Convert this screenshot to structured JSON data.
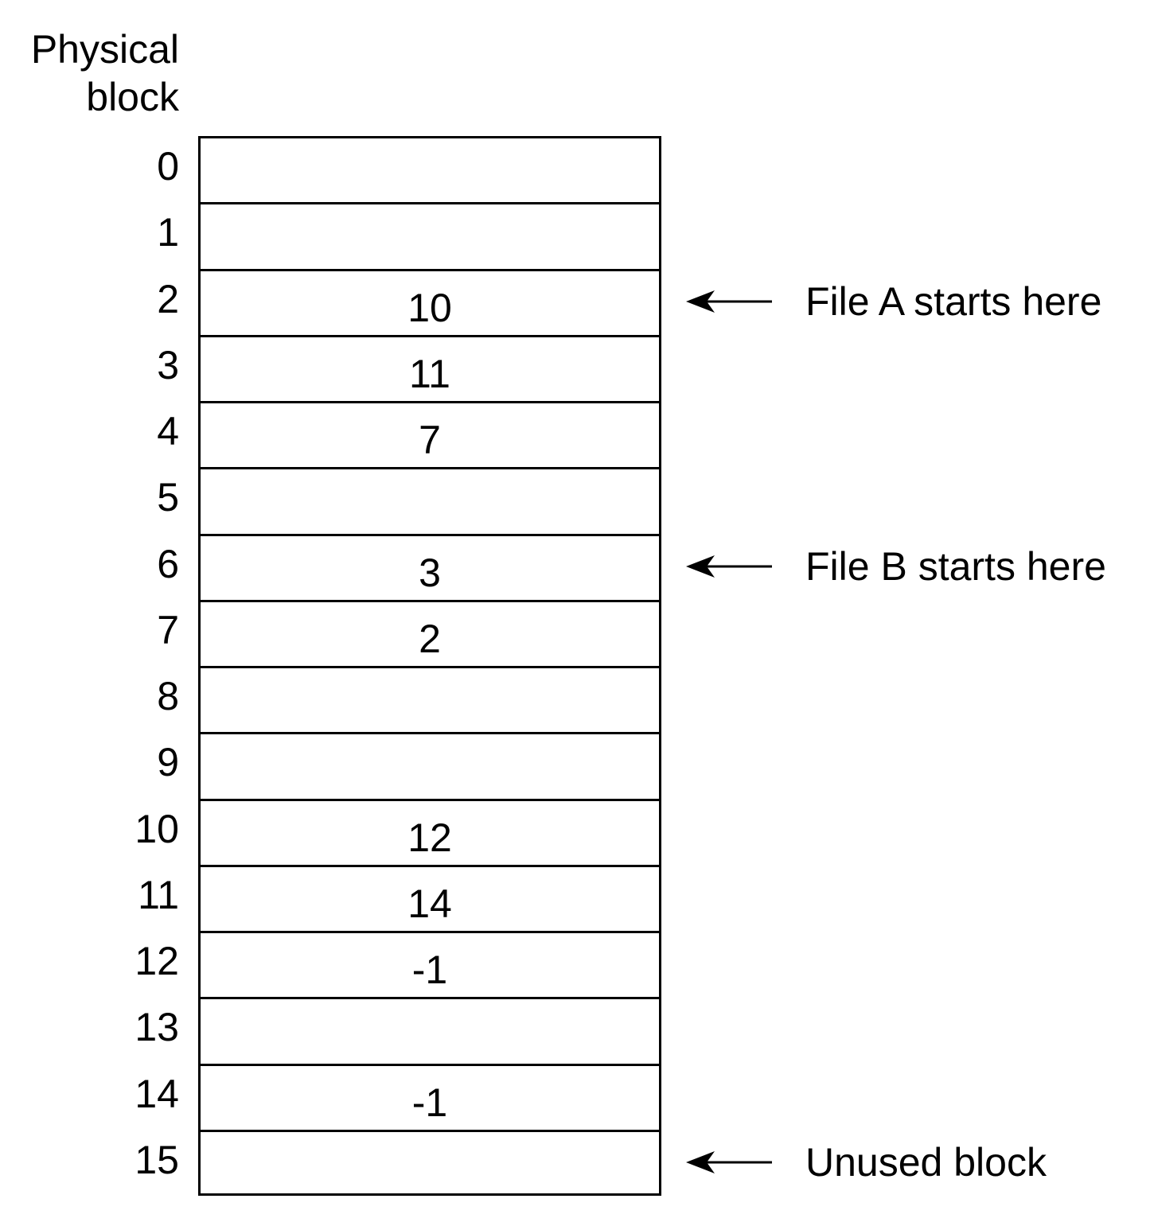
{
  "header": {
    "line1": "Physical",
    "line2": "block"
  },
  "blocks": [
    {
      "label": "0",
      "value": ""
    },
    {
      "label": "1",
      "value": ""
    },
    {
      "label": "2",
      "value": "10"
    },
    {
      "label": "3",
      "value": "11"
    },
    {
      "label": "4",
      "value": "7"
    },
    {
      "label": "5",
      "value": ""
    },
    {
      "label": "6",
      "value": "3"
    },
    {
      "label": "7",
      "value": "2"
    },
    {
      "label": "8",
      "value": ""
    },
    {
      "label": "9",
      "value": ""
    },
    {
      "label": "10",
      "value": "12"
    },
    {
      "label": "11",
      "value": "14"
    },
    {
      "label": "12",
      "value": "-1"
    },
    {
      "label": "13",
      "value": ""
    },
    {
      "label": "14",
      "value": "-1"
    },
    {
      "label": "15",
      "value": ""
    }
  ],
  "annotations": [
    {
      "block": 2,
      "text": "File A starts here"
    },
    {
      "block": 6,
      "text": "File B starts here"
    },
    {
      "block": 15,
      "text": "Unused block"
    }
  ]
}
